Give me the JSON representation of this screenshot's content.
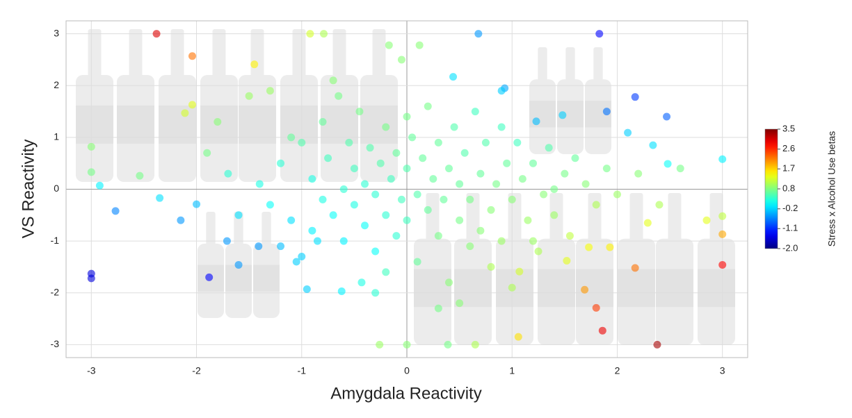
{
  "chart_data": {
    "type": "scatter",
    "x_label": "Amygdala Reactivity",
    "y_label": "VS Reactivity",
    "xlim": [
      -3.24,
      3.24
    ],
    "ylim": [
      -3.25,
      3.25
    ],
    "xticks": [
      -3,
      -2,
      -1,
      0,
      1,
      2,
      3
    ],
    "yticks": [
      -3,
      -2,
      -1,
      0,
      1,
      2,
      3
    ],
    "grid": true,
    "colormap": "jet",
    "colorbar": {
      "label": "Stress x Alcohol Use betas",
      "lim": [
        -2.0,
        3.5
      ],
      "ticks": [
        {
          "value": -2.0,
          "label": "-2.0"
        },
        {
          "value": -1.08,
          "label": "-1.1"
        },
        {
          "value": -0.17,
          "label": "-0.2"
        },
        {
          "value": 0.75,
          "label": "0.8"
        },
        {
          "value": 1.67,
          "label": "1.7"
        },
        {
          "value": 2.58,
          "label": "2.6"
        },
        {
          "value": 3.5,
          "label": "3.5"
        }
      ]
    },
    "x": [
      -2.38,
      -2.04,
      -0.92,
      -0.79,
      -0.17,
      0.12,
      0.68,
      1.83,
      2.17,
      1.9,
      2.47,
      -3,
      -3,
      -1.88,
      -2.77,
      -2.92,
      -2.35,
      -2.15,
      -2.0,
      -1.6,
      -1.71,
      -1.41,
      -3,
      -3,
      -2.54,
      -2.11,
      -2.04,
      -1.45,
      3,
      3,
      2.38,
      1.86,
      1.8,
      1.69,
      2.17,
      3,
      1.06,
      0.65,
      -0.26,
      0,
      0.39,
      1.07,
      1.52,
      1.73,
      1.93,
      2.29,
      2.85,
      3,
      -0.95,
      -0.62,
      -0.43,
      0.44,
      0.93,
      1.23,
      1.48,
      2.1,
      2.34,
      2.48,
      -1.4,
      -1.3,
      -1.2,
      -1.1,
      -1,
      -1,
      -0.9,
      -0.9,
      -0.8,
      -0.8,
      -0.75,
      -0.7,
      -0.65,
      -0.6,
      -0.6,
      -0.55,
      -0.5,
      -0.5,
      -0.45,
      -0.4,
      -0.4,
      -0.35,
      -0.3,
      -0.3,
      -0.25,
      -0.2,
      -0.2,
      -0.15,
      -0.1,
      -0.1,
      -0.05,
      -0.05,
      0,
      0,
      0.05,
      0.1,
      0.1,
      0.15,
      0.2,
      0.2,
      0.25,
      0.3,
      0.3,
      0.35,
      0.4,
      0.4,
      0.45,
      0.5,
      0.5,
      0.55,
      0.6,
      0.6,
      0.65,
      0.7,
      0.7,
      0.75,
      0.8,
      0.8,
      0.85,
      0.9,
      0.9,
      0.95,
      1,
      1,
      1.05,
      1.1,
      1.15,
      1.2,
      1.25,
      1.3,
      1.35,
      1.4,
      1.5,
      1.55,
      1.6,
      1.7,
      1.8,
      1.9,
      2,
      2.2,
      2.4,
      2.6,
      -1.6,
      -1.7,
      -1.8,
      -1.5,
      -1.3,
      -1.2,
      -1.05,
      -0.85,
      -0.7,
      -0.3,
      0.3,
      0.5,
      1.2,
      1.4,
      0,
      -0.2,
      -1.9,
      -1.1,
      0.9
    ],
    "values": [
      3,
      2.57,
      3,
      3,
      2.78,
      2.78,
      3,
      3,
      1.78,
      1.5,
      1.4,
      -1.63,
      -1.72,
      -1.7,
      -0.42,
      0.07,
      -0.17,
      -0.6,
      -0.29,
      -1.46,
      -1.0,
      -1.1,
      0.82,
      0.33,
      0.26,
      1.47,
      1.63,
      2.41,
      0.58,
      -1.46,
      -3,
      -2.73,
      -2.29,
      -1.94,
      -1.52,
      -0.87,
      -2.85,
      -3,
      -3,
      -3,
      -3,
      -1.59,
      -1.38,
      -1.12,
      -1.12,
      -0.65,
      -0.6,
      -0.52,
      -1.93,
      -1.97,
      -1.8,
      2.17,
      1.95,
      1.31,
      1.43,
      1.09,
      0.85,
      0.49,
      0.1,
      -0.3,
      0.5,
      -0.6,
      0.9,
      -1.3,
      0.2,
      -0.8,
      1.3,
      -0.2,
      0.6,
      -0.5,
      1.8,
      0,
      -1,
      0.9,
      -0.3,
      0.4,
      1.5,
      -0.7,
      0.1,
      0.8,
      -1.2,
      -0.1,
      0.5,
      1.2,
      -0.5,
      0.2,
      -0.9,
      0.7,
      -0.2,
      2.5,
      0.4,
      -0.6,
      1,
      -0.1,
      -1.4,
      0.6,
      -0.4,
      1.6,
      0.2,
      -0.9,
      0.9,
      -0.2,
      0.4,
      -1.8,
      1.2,
      -0.6,
      0.1,
      0.7,
      -1.1,
      -0.2,
      1.5,
      0.3,
      -0.8,
      0.9,
      -0.4,
      -1.5,
      0.1,
      1.2,
      -1,
      0.5,
      -0.2,
      -1.9,
      0.9,
      0.2,
      -0.6,
      0.5,
      -1.2,
      -0.1,
      0.8,
      -0.5,
      0.3,
      -0.9,
      0.6,
      0.1,
      -0.3,
      0.4,
      -0.1,
      0.3,
      -0.3,
      0.4,
      -0.5,
      0.3,
      1.3,
      1.8,
      1.9,
      -1.1,
      -1.4,
      -1,
      2.1,
      -2,
      -2.3,
      -2.2,
      -1,
      0,
      1.4,
      -1.6,
      0.7,
      1,
      1.9
    ],
    "color_values": [
      3.0,
      2.2,
      1.2,
      1.0,
      0.8,
      0.8,
      -0.5,
      -1.3,
      -1.0,
      -0.7,
      -0.8,
      -1.5,
      -1.5,
      -1.3,
      -0.6,
      0,
      -0.1,
      -0.5,
      -0.3,
      -0.5,
      -0.5,
      -0.5,
      0.8,
      0.7,
      0.7,
      1.2,
      1.3,
      1.5,
      0,
      2.8,
      3.3,
      2.9,
      2.5,
      2.0,
      2.2,
      1.9,
      1.6,
      1.0,
      0.9,
      0.8,
      0.7,
      1.2,
      1.3,
      1.4,
      1.5,
      1.3,
      1.3,
      1.1,
      -0.2,
      0,
      0.2,
      -0.1,
      -0.4,
      -0.3,
      -0.2,
      -0.2,
      -0.1,
      0.1,
      0.2,
      0.1,
      0.3,
      -0.1,
      0.5,
      -0.2,
      0.2,
      0,
      0.6,
      0.2,
      0.4,
      0.1,
      0.7,
      0.3,
      0,
      0.5,
      0.2,
      0.4,
      0.7,
      0.1,
      0.3,
      0.5,
      0.1,
      0.3,
      0.5,
      0.7,
      0.3,
      0.4,
      0.3,
      0.6,
      0.4,
      0.8,
      0.5,
      0.4,
      0.6,
      0.5,
      0.6,
      0.6,
      0.6,
      0.7,
      0.6,
      0.7,
      0.6,
      0.6,
      0.6,
      0.8,
      0.5,
      0.7,
      0.6,
      0.5,
      0.8,
      0.7,
      0.4,
      0.6,
      0.8,
      0.5,
      0.8,
      1,
      0.7,
      0.4,
      0.9,
      0.6,
      0.8,
      1,
      0.4,
      0.7,
      0.9,
      0.6,
      1,
      0.8,
      0.5,
      0.9,
      0.7,
      1.1,
      0.6,
      0.8,
      1,
      0.7,
      0.9,
      0.8,
      1,
      0.7,
      -0.1,
      0.3,
      0.8,
      0.9,
      0.9,
      -0.3,
      -0.2,
      -0.1,
      0.8,
      0.3,
      0.7,
      0.8,
      0.9,
      0.7,
      0.7,
      0.4,
      0.7,
      0.6,
      -0.2
    ]
  }
}
